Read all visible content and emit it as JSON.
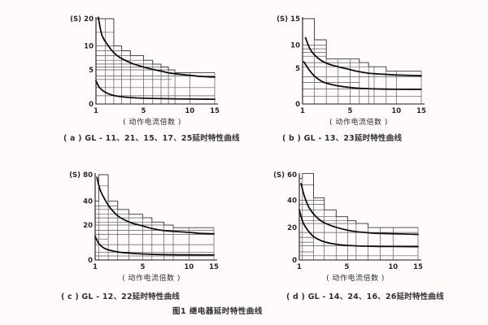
{
  "page": {
    "figure_caption": "图1 继电器延时特性曲线",
    "background_color": "#fffbfb",
    "line_color": "#161616"
  },
  "chart_data": [
    {
      "type": "line",
      "id": "a",
      "caption": "( a ) GL - 11、21、15、17、25延时特性曲线",
      "y_unit": "(S)",
      "x_label": "( 动作电流倍数 )",
      "x_range": [
        1,
        15
      ],
      "y_range": [
        0,
        20
      ],
      "grid": true,
      "x_ticks": [
        {
          "v": 1,
          "f": 0
        },
        {
          "v": 5,
          "f": 0.4
        },
        {
          "v": 10,
          "f": 0.79
        },
        {
          "v": 15,
          "f": 1
        }
      ],
      "y_ticks": [
        {
          "v": 0,
          "f": 0
        },
        {
          "v": 5,
          "f": 0.4
        },
        {
          "v": 10,
          "f": 0.68
        },
        {
          "v": 20,
          "f": 1
        }
      ],
      "envelope_steps": [
        [
          1,
          2.5,
          20
        ],
        [
          2.5,
          3.15,
          10
        ],
        [
          3.15,
          3.9,
          9
        ],
        [
          3.9,
          5,
          8
        ],
        [
          5,
          6,
          7
        ],
        [
          6,
          6.9,
          6.2
        ],
        [
          6.9,
          7.7,
          5.6
        ],
        [
          7.7,
          8.4,
          5
        ],
        [
          8.4,
          15,
          4.6
        ]
      ],
      "h_gridlines": [
        [
          15,
          1,
          2.5
        ],
        [
          10,
          1,
          3.15
        ],
        [
          9,
          1,
          3.9
        ],
        [
          8,
          1,
          5
        ],
        [
          7,
          1,
          6
        ],
        [
          6.2,
          1,
          6.9
        ],
        [
          5.6,
          1,
          7.7
        ],
        [
          5,
          1,
          8.4
        ],
        [
          4.1,
          1,
          15
        ],
        [
          3.6,
          1,
          8
        ],
        [
          2.4,
          1,
          15
        ],
        [
          1.2,
          1,
          15
        ]
      ],
      "v_gridlines": [
        [
          1.8,
          20
        ],
        [
          2.5,
          20
        ],
        [
          3.15,
          10
        ],
        [
          3.9,
          9
        ],
        [
          5,
          8
        ],
        [
          6,
          7
        ],
        [
          6.9,
          6.2
        ],
        [
          7.7,
          5.6
        ],
        [
          8.4,
          5
        ],
        [
          10,
          4.6
        ],
        [
          15,
          4.6
        ]
      ],
      "series": [
        {
          "name": "upper-limit-curve",
          "points": [
            [
              1.2,
              20.5
            ],
            [
              1.5,
              14
            ],
            [
              2,
              10.3
            ],
            [
              2.5,
              8.6
            ],
            [
              3,
              7.6
            ],
            [
              4,
              6.4
            ],
            [
              5,
              5.6
            ],
            [
              6,
              5.1
            ],
            [
              7,
              4.8
            ],
            [
              8,
              4.5
            ],
            [
              10,
              4.2
            ],
            [
              12,
              4.05
            ],
            [
              15,
              3.95
            ]
          ]
        },
        {
          "name": "lower-limit-curve",
          "points": [
            [
              1,
              3.4
            ],
            [
              1.3,
              2.4
            ],
            [
              1.8,
              1.7
            ],
            [
              2.5,
              1.25
            ],
            [
              3.5,
              1.0
            ],
            [
              5,
              0.85
            ],
            [
              7,
              0.78
            ],
            [
              10,
              0.73
            ],
            [
              15,
              0.7
            ]
          ]
        }
      ]
    },
    {
      "type": "line",
      "id": "b",
      "caption": "( b ) GL - 13、23延时特性曲线",
      "y_unit": "(S)",
      "x_label": "( 动作电流倍数 )",
      "x_range": [
        1,
        15
      ],
      "y_range": [
        0,
        15
      ],
      "grid": true,
      "x_ticks": [
        {
          "v": 1,
          "f": 0
        },
        {
          "v": 5,
          "f": 0.4
        },
        {
          "v": 10,
          "f": 0.79
        },
        {
          "v": 15,
          "f": 1
        }
      ],
      "y_ticks": [
        {
          "v": 0,
          "f": 0
        },
        {
          "v": 5,
          "f": 0.42
        },
        {
          "v": 10,
          "f": 0.69
        },
        {
          "v": 15,
          "f": 1
        }
      ],
      "envelope_steps": [
        [
          1,
          2,
          15
        ],
        [
          2,
          3,
          11
        ],
        [
          3,
          6,
          7
        ],
        [
          6,
          7,
          6.2
        ],
        [
          7,
          8.9,
          5.3
        ],
        [
          8.9,
          15,
          4.6
        ]
      ],
      "h_gridlines": [
        [
          10,
          1,
          3
        ],
        [
          9.2,
          1,
          3
        ],
        [
          8.4,
          1,
          3
        ],
        [
          7.6,
          1,
          3
        ],
        [
          6.2,
          1,
          7
        ],
        [
          5.3,
          1,
          8.9
        ],
        [
          3.8,
          1,
          15
        ],
        [
          3,
          1,
          6
        ],
        [
          2.1,
          1,
          15
        ],
        [
          1.1,
          1,
          15
        ]
      ],
      "v_gridlines": [
        [
          2,
          15
        ],
        [
          3,
          11
        ],
        [
          4,
          7
        ],
        [
          5,
          7
        ],
        [
          6,
          7
        ],
        [
          7,
          6.2
        ],
        [
          7.6,
          5.3
        ],
        [
          8.9,
          5.3
        ],
        [
          10,
          4.6
        ],
        [
          15,
          4.6
        ]
      ],
      "series": [
        {
          "name": "upper-limit-curve",
          "points": [
            [
              1.25,
              11.4
            ],
            [
              1.6,
              9.3
            ],
            [
              2,
              7.9
            ],
            [
              2.6,
              6.6
            ],
            [
              3.3,
              5.8
            ],
            [
              4,
              5.3
            ],
            [
              5,
              4.8
            ],
            [
              6,
              4.5
            ],
            [
              7,
              4.3
            ],
            [
              8,
              4.2
            ],
            [
              10,
              4.05
            ],
            [
              15,
              3.95
            ]
          ]
        },
        {
          "name": "lower-limit-curve",
          "points": [
            [
              1.1,
              6.4
            ],
            [
              1.5,
              4.9
            ],
            [
              2,
              3.9
            ],
            [
              2.7,
              3.1
            ],
            [
              3.5,
              2.7
            ],
            [
              4.5,
              2.4
            ],
            [
              6,
              2.2
            ],
            [
              8,
              2.1
            ],
            [
              10,
              2.05
            ],
            [
              15,
              2.05
            ]
          ]
        }
      ]
    },
    {
      "type": "line",
      "id": "c",
      "caption": "( c ) GL - 12、22延时特性曲线",
      "y_unit": "(S)",
      "x_label": "( 动作电流倍数 )",
      "x_range": [
        1,
        15
      ],
      "y_range": [
        0,
        80
      ],
      "grid": true,
      "x_ticks": [
        {
          "v": 1,
          "f": 0
        },
        {
          "v": 5,
          "f": 0.4
        },
        {
          "v": 10,
          "f": 0.79
        },
        {
          "v": 15,
          "f": 1
        }
      ],
      "y_ticks": [
        {
          "v": 0,
          "f": 0
        },
        {
          "v": 20,
          "f": 0.41
        },
        {
          "v": 40,
          "f": 0.69
        },
        {
          "v": 80,
          "f": 1
        }
      ],
      "envelope_steps": [
        [
          1,
          1.3,
          40
        ],
        [
          1.3,
          2.1,
          80
        ],
        [
          2.1,
          2.9,
          40
        ],
        [
          2.9,
          3.85,
          33
        ],
        [
          3.85,
          5,
          29
        ],
        [
          5,
          6,
          26
        ],
        [
          6,
          7.3,
          22.5
        ],
        [
          7.3,
          8.3,
          20
        ],
        [
          8.3,
          15,
          18.5
        ]
      ],
      "h_gridlines": [
        [
          63,
          1.3,
          2.1
        ],
        [
          36,
          1,
          2.9
        ],
        [
          33,
          1,
          3.85
        ],
        [
          29,
          1,
          5
        ],
        [
          26,
          1,
          6
        ],
        [
          22.5,
          1,
          7.3
        ],
        [
          20,
          1,
          8.3
        ],
        [
          17,
          1,
          15
        ],
        [
          14.6,
          1,
          15
        ],
        [
          12,
          1,
          2.1
        ],
        [
          8.8,
          1,
          15
        ],
        [
          4.5,
          1,
          15
        ],
        [
          2.3,
          1,
          15
        ]
      ],
      "v_gridlines": [
        [
          1.3,
          40
        ],
        [
          2.1,
          80
        ],
        [
          2.9,
          40
        ],
        [
          3.85,
          33
        ],
        [
          5,
          29
        ],
        [
          6,
          26
        ],
        [
          7.3,
          22.5
        ],
        [
          8.3,
          20
        ],
        [
          10,
          18.5
        ],
        [
          15,
          18.5
        ]
      ],
      "series": [
        {
          "name": "upper-limit-curve",
          "points": [
            [
              1.15,
              76
            ],
            [
              1.4,
              58
            ],
            [
              1.8,
              43
            ],
            [
              2.3,
              34
            ],
            [
              3,
              27
            ],
            [
              4,
              22
            ],
            [
              5,
              19.5
            ],
            [
              6,
              18
            ],
            [
              7,
              17
            ],
            [
              8,
              16.5
            ],
            [
              10,
              15.8
            ],
            [
              12,
              15.3
            ],
            [
              15,
              15
            ]
          ]
        },
        {
          "name": "lower-limit-curve",
          "points": [
            [
              1,
              13.5
            ],
            [
              1.3,
              9.5
            ],
            [
              1.7,
              7
            ],
            [
              2.2,
              5.6
            ],
            [
              3,
              4.5
            ],
            [
              4,
              3.9
            ],
            [
              5,
              3.5
            ],
            [
              7,
              3.1
            ],
            [
              10,
              2.95
            ],
            [
              15,
              2.9
            ]
          ]
        }
      ]
    },
    {
      "type": "line",
      "id": "d",
      "caption": "( d ) GL - 14、24、16、26延时特性曲线",
      "y_unit": "(S)",
      "x_label": "( 动作电流倍数 )",
      "x_range": [
        1,
        15
      ],
      "y_range": [
        0,
        60
      ],
      "grid": true,
      "x_ticks": [
        {
          "v": 1,
          "f": 0
        },
        {
          "v": 5,
          "f": 0.4
        },
        {
          "v": 10,
          "f": 0.79
        },
        {
          "v": 15,
          "f": 1
        }
      ],
      "y_ticks": [
        {
          "v": 0,
          "f": 0
        },
        {
          "v": 20,
          "f": 0.38
        },
        {
          "v": 40,
          "f": 0.7
        },
        {
          "v": 60,
          "f": 1
        }
      ],
      "envelope_steps": [
        [
          1,
          1.26,
          57
        ],
        [
          1.26,
          2.2,
          61
        ],
        [
          2.2,
          3.1,
          42
        ],
        [
          3.1,
          4.1,
          33
        ],
        [
          4.1,
          5.1,
          28
        ],
        [
          5.1,
          6,
          25
        ],
        [
          6,
          7.3,
          23
        ],
        [
          7.3,
          15,
          20
        ]
      ],
      "h_gridlines": [
        [
          52,
          1,
          2.2
        ],
        [
          40,
          1,
          3.1
        ],
        [
          37,
          1,
          3.1
        ],
        [
          33,
          1,
          4.1
        ],
        [
          28,
          1,
          5.1
        ],
        [
          25,
          1,
          6
        ],
        [
          23,
          1,
          7.3
        ],
        [
          17,
          1,
          15
        ],
        [
          14,
          1,
          2.2
        ],
        [
          11,
          1,
          2.2
        ],
        [
          8.7,
          1,
          15
        ],
        [
          5,
          1,
          2.2
        ],
        [
          2.6,
          1,
          15
        ]
      ],
      "v_gridlines": [
        [
          1.26,
          57
        ],
        [
          2.2,
          61
        ],
        [
          3.1,
          42
        ],
        [
          4.1,
          33
        ],
        [
          5.1,
          28
        ],
        [
          6,
          25
        ],
        [
          7.3,
          23
        ],
        [
          8.6,
          20
        ],
        [
          10,
          20
        ],
        [
          15,
          20
        ]
      ],
      "series": [
        {
          "name": "upper-limit-curve",
          "points": [
            [
              1.15,
              53
            ],
            [
              1.4,
              44
            ],
            [
              1.8,
              35
            ],
            [
              2.3,
              29
            ],
            [
              3,
              24
            ],
            [
              4,
              20.5
            ],
            [
              5,
              18.5
            ],
            [
              6,
              17.5
            ],
            [
              7,
              17
            ],
            [
              8,
              16.5
            ],
            [
              10,
              16.2
            ],
            [
              15,
              15.8
            ]
          ]
        },
        {
          "name": "lower-limit-curve",
          "points": [
            [
              1,
              33
            ],
            [
              1.3,
              24
            ],
            [
              1.7,
              18.5
            ],
            [
              2.2,
              14.5
            ],
            [
              3,
              11.5
            ],
            [
              4,
              9.8
            ],
            [
              5,
              9
            ],
            [
              6,
              8.7
            ],
            [
              8,
              8.4
            ],
            [
              10,
              8.3
            ],
            [
              15,
              8.2
            ]
          ]
        }
      ]
    }
  ]
}
